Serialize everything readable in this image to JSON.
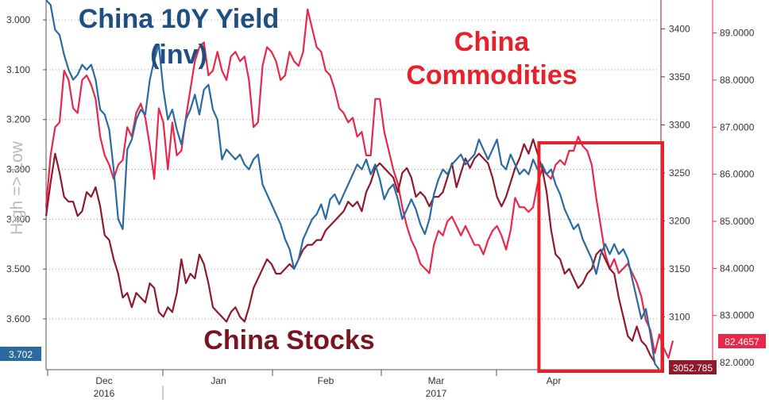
{
  "chart_data": {
    "type": "line",
    "annotations": {
      "yield_title_line1": "China 10Y Yield",
      "yield_title_line2": "(inv)",
      "commodities_line1": "China",
      "commodities_line2": "Commodities",
      "stocks": "China Stocks"
    },
    "left_axis": {
      "label": "High => Low",
      "ticks": [
        "3.000",
        "3.100",
        "3.200",
        "3.300",
        "3.400",
        "3.500",
        "3.600"
      ],
      "range": [
        2.96,
        3.702
      ],
      "inverted": true
    },
    "right_axis_stocks": {
      "ticks": [
        "3400",
        "3350",
        "3300",
        "3250",
        "3200",
        "3150",
        "3100"
      ],
      "range": [
        3045,
        3430
      ]
    },
    "right_axis_commodities": {
      "ticks": [
        "89.0000",
        "88.0000",
        "87.0000",
        "86.0000",
        "85.0000",
        "84.0000",
        "83.0000",
        "82.0000"
      ],
      "range": [
        81.85,
        89.7
      ]
    },
    "x_axis": {
      "months": [
        {
          "label": "Dec",
          "year": "2016"
        },
        {
          "label": "Jan",
          "year": ""
        },
        {
          "label": "Feb",
          "year": ""
        },
        {
          "label": "Mar",
          "year": "2017"
        },
        {
          "label": "Apr",
          "year": ""
        }
      ]
    },
    "end_labels": {
      "yield": "3.702",
      "commodities": "82.4657",
      "stocks": "3052.785"
    },
    "highlight": {
      "from_index": 110,
      "to_index": 136
    },
    "colors": {
      "yield": "#2b6aa1",
      "commodities": "#e8284a",
      "stocks": "#8e1a2c",
      "highlight_box": "#e8202a",
      "yield_title": "#1f4f82",
      "commodities_title": "#e8202a",
      "stocks_title": "#7a1420"
    },
    "series": [
      {
        "key": "yield",
        "name": "China 10Y Yield",
        "axis": "left",
        "values": [
          2.96,
          2.97,
          3.02,
          3.03,
          3.07,
          3.1,
          3.12,
          3.11,
          3.09,
          3.1,
          3.09,
          3.12,
          3.18,
          3.19,
          3.22,
          3.3,
          3.4,
          3.42,
          3.26,
          3.24,
          3.2,
          3.18,
          3.19,
          3.12,
          3.08,
          3.05,
          3.14,
          3.2,
          3.18,
          3.22,
          3.25,
          3.2,
          3.18,
          3.15,
          3.19,
          3.14,
          3.13,
          3.18,
          3.2,
          3.28,
          3.26,
          3.27,
          3.28,
          3.27,
          3.29,
          3.3,
          3.28,
          3.27,
          3.33,
          3.35,
          3.37,
          3.39,
          3.41,
          3.44,
          3.46,
          3.5,
          3.48,
          3.44,
          3.42,
          3.4,
          3.39,
          3.37,
          3.4,
          3.36,
          3.35,
          3.37,
          3.35,
          3.33,
          3.31,
          3.29,
          3.3,
          3.28,
          3.31,
          3.29,
          3.32,
          3.36,
          3.34,
          3.33,
          3.36,
          3.4,
          3.38,
          3.36,
          3.38,
          3.41,
          3.43,
          3.4,
          3.35,
          3.32,
          3.3,
          3.31,
          3.29,
          3.28,
          3.27,
          3.29,
          3.28,
          3.27,
          3.24,
          3.26,
          3.28,
          3.26,
          3.24,
          3.29,
          3.3,
          3.27,
          3.29,
          3.31,
          3.3,
          3.31,
          3.28,
          3.3,
          3.29,
          3.31,
          3.3,
          3.33,
          3.35,
          3.38,
          3.4,
          3.42,
          3.41,
          3.44,
          3.46,
          3.48,
          3.51,
          3.47,
          3.45,
          3.47,
          3.45,
          3.47,
          3.46,
          3.48,
          3.52,
          3.56,
          3.6,
          3.58,
          3.63,
          3.69,
          3.702
        ]
      },
      {
        "key": "commodities",
        "name": "China Commodities",
        "axis": "right_commodities",
        "values": [
          85.3,
          86.4,
          87.0,
          87.1,
          88.2,
          88.0,
          87.4,
          87.3,
          88.0,
          88.1,
          87.9,
          87.6,
          86.8,
          86.4,
          86.2,
          85.9,
          86.2,
          86.3,
          87.0,
          86.8,
          87.3,
          87.5,
          87.2,
          86.6,
          85.9,
          87.4,
          87.1,
          86.1,
          87.1,
          86.4,
          86.5,
          87.2,
          87.8,
          88.4,
          88.7,
          88.8,
          88.1,
          88.2,
          88.6,
          88.2,
          88.0,
          88.5,
          88.6,
          88.4,
          88.5,
          88.0,
          87.0,
          87.1,
          88.3,
          88.7,
          88.6,
          88.4,
          88.0,
          88.1,
          88.6,
          88.4,
          88.3,
          88.6,
          89.5,
          89.1,
          88.7,
          88.6,
          88.2,
          88.1,
          87.8,
          87.4,
          87.3,
          87.1,
          87.2,
          86.8,
          86.9,
          86.4,
          86.4,
          87.6,
          87.6,
          86.9,
          86.5,
          86.1,
          85.8,
          85.3,
          84.9,
          84.6,
          84.4,
          84.1,
          84.0,
          83.9,
          84.5,
          84.8,
          84.7,
          85.0,
          85.1,
          84.9,
          84.7,
          84.9,
          84.7,
          84.5,
          84.5,
          84.3,
          84.6,
          84.8,
          84.9,
          84.7,
          84.4,
          84.8,
          85.5,
          85.3,
          85.3,
          85.2,
          85.3,
          85.8,
          86.1,
          86.0,
          85.9,
          86.2,
          86.3,
          86.2,
          86.5,
          86.5,
          86.8,
          86.6,
          86.5,
          86.2,
          85.5,
          84.9,
          84.3,
          84.0,
          84.2,
          83.9,
          84.0,
          84.1,
          83.9,
          83.7,
          83.4,
          82.9,
          82.7,
          82.2,
          82.6,
          82.3,
          82.1,
          82.4657
        ]
      },
      {
        "key": "stocks",
        "name": "China Stocks",
        "axis": "right_stocks",
        "values": [
          3205,
          3240,
          3270,
          3250,
          3225,
          3220,
          3220,
          3205,
          3210,
          3230,
          3225,
          3235,
          3215,
          3185,
          3180,
          3160,
          3145,
          3120,
          3125,
          3110,
          3125,
          3120,
          3115,
          3135,
          3130,
          3105,
          3100,
          3110,
          3105,
          3125,
          3160,
          3135,
          3145,
          3140,
          3165,
          3155,
          3135,
          3110,
          3105,
          3100,
          3095,
          3105,
          3110,
          3100,
          3095,
          3110,
          3130,
          3140,
          3150,
          3160,
          3155,
          3145,
          3145,
          3150,
          3155,
          3150,
          3160,
          3170,
          3175,
          3175,
          3180,
          3180,
          3190,
          3195,
          3200,
          3205,
          3210,
          3220,
          3215,
          3220,
          3210,
          3230,
          3240,
          3255,
          3260,
          3255,
          3250,
          3245,
          3230,
          3250,
          3255,
          3245,
          3225,
          3230,
          3225,
          3215,
          3225,
          3225,
          3230,
          3245,
          3260,
          3235,
          3250,
          3265,
          3255,
          3265,
          3270,
          3265,
          3260,
          3245,
          3225,
          3215,
          3225,
          3240,
          3255,
          3265,
          3280,
          3270,
          3285,
          3270,
          3255,
          3230,
          3190,
          3165,
          3160,
          3145,
          3150,
          3140,
          3130,
          3135,
          3145,
          3150,
          3165,
          3170,
          3160,
          3150,
          3145,
          3120,
          3100,
          3080,
          3075,
          3090,
          3075,
          3070,
          3060,
          3052.785
        ]
      }
    ]
  }
}
